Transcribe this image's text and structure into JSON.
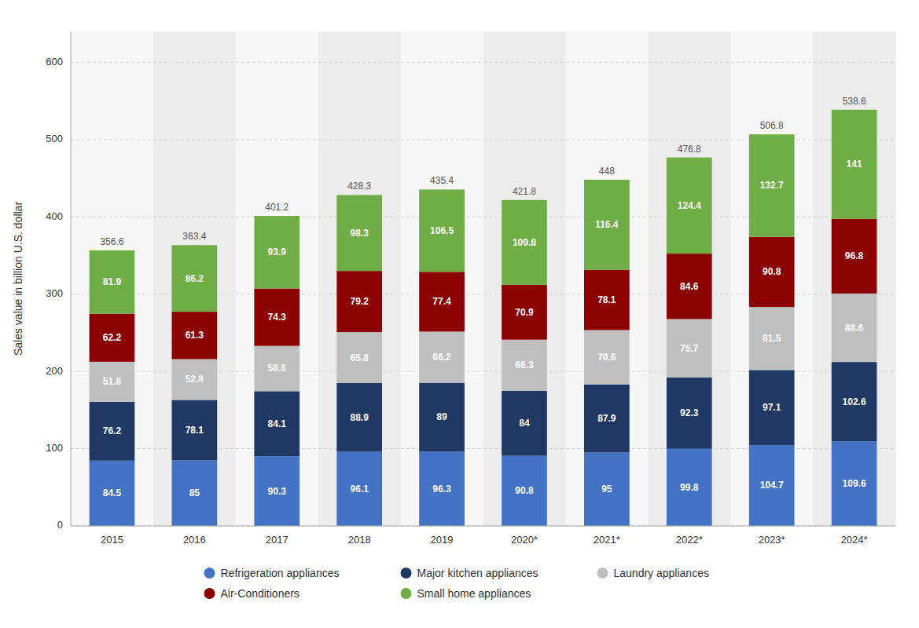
{
  "chart_data": {
    "type": "bar",
    "stacked": true,
    "data_labels": true,
    "grid": true,
    "legend": "bottom",
    "ylabel": "Sales value in billion U.S. dollar",
    "categories": [
      "2015",
      "2016",
      "2017",
      "2018",
      "2019",
      "2020*",
      "2021*",
      "2022*",
      "2023*",
      "2024*"
    ],
    "series": [
      {
        "name": "Refrigeration appliances",
        "color": "#4472C4",
        "values": [
          84.5,
          85,
          90.3,
          96.1,
          96.3,
          90.8,
          95,
          99.8,
          104.7,
          109.6
        ]
      },
      {
        "name": "Major kitchen appliances",
        "color": "#1F3864",
        "values": [
          76.2,
          78.1,
          84.1,
          88.9,
          89,
          84,
          87.9,
          92.3,
          97.1,
          102.6
        ]
      },
      {
        "name": "Laundry appliances",
        "color": "#BFBFBF",
        "values": [
          51.8,
          52.8,
          58.6,
          65.8,
          66.2,
          66.3,
          70.6,
          75.7,
          81.5,
          88.6
        ]
      },
      {
        "name": "Air-Conditioners",
        "color": "#8B0000",
        "values": [
          62.2,
          61.3,
          74.3,
          79.2,
          77.4,
          70.9,
          78.1,
          84.6,
          90.8,
          96.8
        ]
      },
      {
        "name": "Small home appliances",
        "color": "#70AD47",
        "values": [
          81.9,
          86.2,
          93.9,
          98.3,
          106.5,
          109.8,
          116.4,
          124.4,
          132.7,
          141
        ]
      }
    ],
    "totals": [
      356.6,
      363.4,
      401.2,
      428.3,
      435.4,
      421.8,
      448,
      476.8,
      506.8,
      538.6
    ],
    "ylim": [
      0,
      640
    ],
    "yticks": [
      0,
      100,
      200,
      300,
      400,
      500,
      600
    ]
  }
}
